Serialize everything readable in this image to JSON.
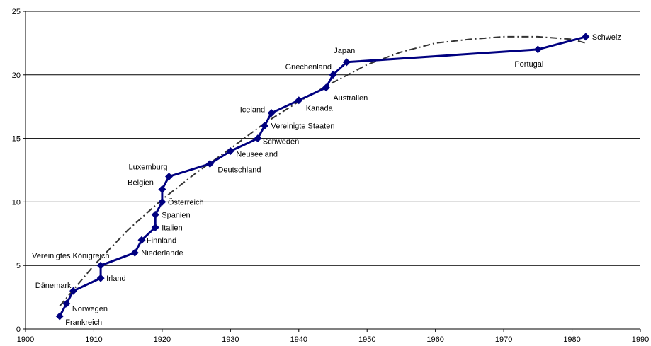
{
  "chart_data": {
    "type": "line",
    "title": "",
    "xlabel": "",
    "ylabel": "",
    "xlim": [
      1900,
      1990
    ],
    "ylim": [
      0,
      25
    ],
    "x_ticks": [
      1900,
      1910,
      1920,
      1930,
      1940,
      1950,
      1960,
      1970,
      1980,
      1990
    ],
    "y_ticks": [
      0,
      5,
      10,
      15,
      20,
      25
    ],
    "grid": "horizontal",
    "legend": "none",
    "colors": {
      "series": "#000080",
      "marker": "#000080",
      "trend": "#333333",
      "grid": "#000000"
    },
    "series": [
      {
        "points": [
          {
            "x": 1905,
            "y": 1,
            "label": "Frankreich"
          },
          {
            "x": 1906,
            "y": 2,
            "label": "Norwegen"
          },
          {
            "x": 1907,
            "y": 3,
            "label": "Dänemark"
          },
          {
            "x": 1911,
            "y": 4,
            "label": "Irland"
          },
          {
            "x": 1911,
            "y": 5,
            "label": "Vereinigtes Königreich"
          },
          {
            "x": 1916,
            "y": 6,
            "label": "Niederlande"
          },
          {
            "x": 1917,
            "y": 7,
            "label": "Finnland"
          },
          {
            "x": 1919,
            "y": 8,
            "label": "Italien"
          },
          {
            "x": 1919,
            "y": 9,
            "label": "Spanien"
          },
          {
            "x": 1920,
            "y": 10,
            "label": "Österreich"
          },
          {
            "x": 1920,
            "y": 11,
            "label": "Belgien"
          },
          {
            "x": 1921,
            "y": 12,
            "label": "Luxemburg"
          },
          {
            "x": 1927,
            "y": 13,
            "label": "Deutschland"
          },
          {
            "x": 1930,
            "y": 14,
            "label": "Neuseeland"
          },
          {
            "x": 1934,
            "y": 15,
            "label": "Schweden"
          },
          {
            "x": 1935,
            "y": 16,
            "label": "Vereinigte Staaten"
          },
          {
            "x": 1936,
            "y": 17,
            "label": "Iceland"
          },
          {
            "x": 1940,
            "y": 18,
            "label": "Kanada"
          },
          {
            "x": 1944,
            "y": 19,
            "label": "Australien"
          },
          {
            "x": 1945,
            "y": 20,
            "label": "Griechenland"
          },
          {
            "x": 1947,
            "y": 21,
            "label": "Japan"
          },
          {
            "x": 1975,
            "y": 22,
            "label": "Portugal"
          },
          {
            "x": 1982,
            "y": 23,
            "label": "Schweiz"
          }
        ]
      },
      {
        "style": "dash-dot trend",
        "points": [
          {
            "x": 1905,
            "y": 1.8
          },
          {
            "x": 1910,
            "y": 5.0
          },
          {
            "x": 1915,
            "y": 7.8
          },
          {
            "x": 1920,
            "y": 10.2
          },
          {
            "x": 1925,
            "y": 12.3
          },
          {
            "x": 1930,
            "y": 14.2
          },
          {
            "x": 1935,
            "y": 16.2
          },
          {
            "x": 1940,
            "y": 17.9
          },
          {
            "x": 1945,
            "y": 19.4
          },
          {
            "x": 1950,
            "y": 20.8
          },
          {
            "x": 1955,
            "y": 21.8
          },
          {
            "x": 1960,
            "y": 22.5
          },
          {
            "x": 1965,
            "y": 22.8
          },
          {
            "x": 1970,
            "y": 23.0
          },
          {
            "x": 1975,
            "y": 23.0
          },
          {
            "x": 1980,
            "y": 22.8
          },
          {
            "x": 1982,
            "y": 22.5
          }
        ]
      }
    ]
  }
}
